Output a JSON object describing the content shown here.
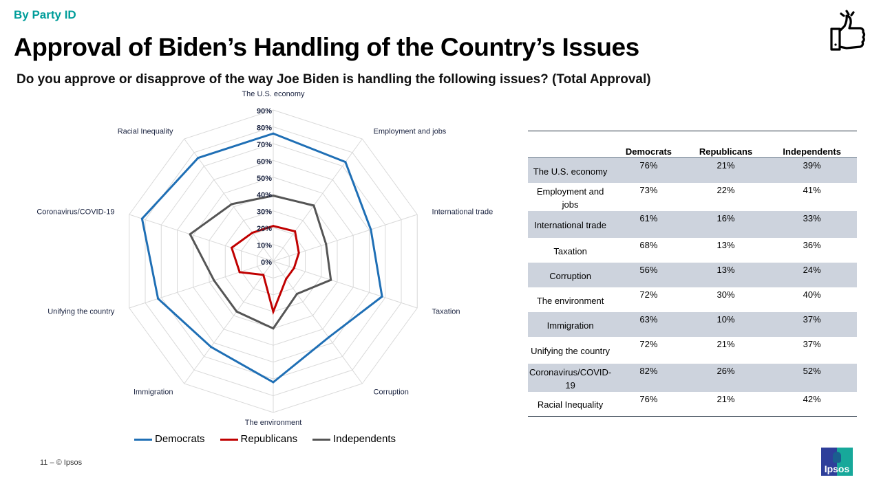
{
  "header": {
    "kicker": "By Party ID",
    "title": "Approval of Biden’s Handling of the Country’s Issues",
    "subtitle": "Do you approve or disapprove of the way Joe Biden is handling the following issues? (Total Approval)",
    "icon": "thumbs-up-icon"
  },
  "chart_data": {
    "type": "radar",
    "categories": [
      "The U.S. economy",
      "Employment and jobs",
      "International trade",
      "Taxation",
      "Corruption",
      "The environment",
      "Immigration",
      "Unifying the country",
      "Coronavirus/COVID-19",
      "Racial Inequality"
    ],
    "tick_labels": [
      "0%",
      "10%",
      "20%",
      "30%",
      "40%",
      "50%",
      "60%",
      "70%",
      "80%",
      "90%"
    ],
    "rlim": [
      0,
      90
    ],
    "series": [
      {
        "name": "Democrats",
        "color": "#1f6fb5",
        "values": [
          76,
          73,
          61,
          68,
          56,
          72,
          63,
          72,
          82,
          76
        ]
      },
      {
        "name": "Republicans",
        "color": "#c00000",
        "values": [
          21,
          22,
          16,
          13,
          13,
          30,
          10,
          21,
          26,
          21
        ]
      },
      {
        "name": "Independents",
        "color": "#555555",
        "values": [
          39,
          41,
          33,
          36,
          24,
          40,
          37,
          37,
          52,
          42
        ]
      }
    ],
    "legend": "bottom"
  },
  "table": {
    "columns": [
      "",
      "Democrats",
      "Republicans",
      "Independents"
    ],
    "rows": [
      [
        "The U.S. economy",
        "76%",
        "21%",
        "39%"
      ],
      [
        "Employment and jobs",
        "73%",
        "22%",
        "41%"
      ],
      [
        "International trade",
        "61%",
        "16%",
        "33%"
      ],
      [
        "Taxation",
        "68%",
        "13%",
        "36%"
      ],
      [
        "Corruption",
        "56%",
        "13%",
        "24%"
      ],
      [
        "The environment",
        "72%",
        "30%",
        "40%"
      ],
      [
        "Immigration",
        "63%",
        "10%",
        "37%"
      ],
      [
        "Unifying the country",
        "72%",
        "21%",
        "37%"
      ],
      [
        "Coronavirus/COVID-19",
        "82%",
        "26%",
        "52%"
      ],
      [
        "Racial Inequality",
        "76%",
        "21%",
        "42%"
      ]
    ]
  },
  "footer": {
    "text": "11 –  © Ipsos",
    "logo": "Ipsos"
  }
}
